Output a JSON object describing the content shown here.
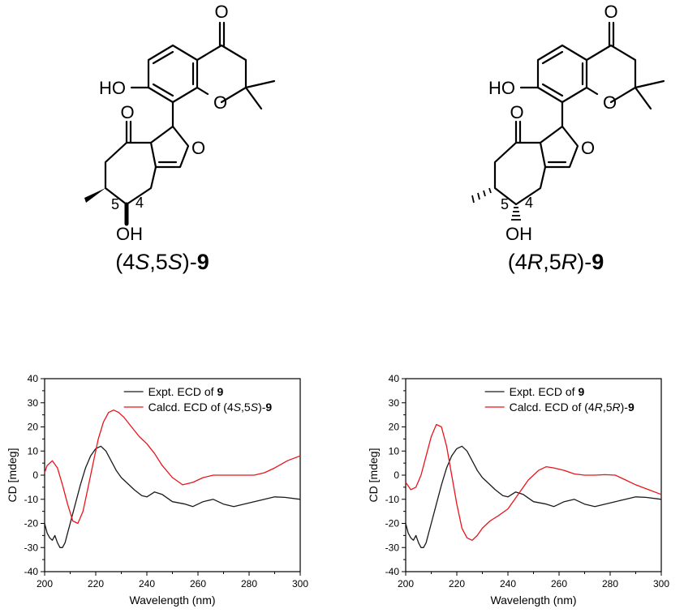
{
  "molecules": [
    {
      "label_prefix": "(4",
      "label_s1": "S",
      "label_mid": ",5",
      "label_s2": "S",
      "label_close": ")-",
      "label_bold": "9",
      "atoms": {
        "o_ketone_top": "O",
        "ho": "HO",
        "o_ring": "O",
        "o_ketone_left": "O",
        "o_furan": "O",
        "oh": "OH",
        "num5": "5",
        "num4": "4"
      }
    },
    {
      "label_prefix": "(4",
      "label_s1": "R",
      "label_mid": ",5",
      "label_s2": "R",
      "label_close": ")-",
      "label_bold": "9",
      "atoms": {
        "o_ketone_top": "O",
        "ho": "HO",
        "o_ring": "O",
        "o_ketone_left": "O",
        "o_furan": "O",
        "oh": "OH",
        "num5": "5",
        "num4": "4"
      }
    }
  ],
  "chart_data": [
    {
      "type": "line",
      "xlabel": "Wavelength (nm)",
      "ylabel": "CD [mdeg]",
      "xlim": [
        200,
        300
      ],
      "ylim": [
        -40,
        40
      ],
      "xticks": [
        "200",
        "220",
        "240",
        "260",
        "280",
        "300"
      ],
      "yticks": [
        "40",
        "30",
        "20",
        "10",
        "0",
        "-10",
        "-20",
        "-30",
        "-40"
      ],
      "legend_position": "top-right",
      "series": [
        {
          "legend_prefix": "Expt. ECD of ",
          "legend_s1": "",
          "legend_mid": "",
          "legend_s2": "",
          "legend_close": "",
          "legend_bold": "9",
          "color": "#1a1a1a",
          "x": [
            200,
            201,
            202,
            203,
            204,
            205,
            206,
            207,
            208,
            209,
            210,
            212,
            214,
            216,
            218,
            220,
            222,
            224,
            226,
            228,
            230,
            232,
            235,
            238,
            240,
            243,
            246,
            250,
            255,
            258,
            262,
            266,
            270,
            274,
            278,
            282,
            286,
            290,
            294,
            300
          ],
          "y": [
            -20,
            -24,
            -26,
            -27,
            -25,
            -28,
            -30,
            -30,
            -28,
            -24,
            -20,
            -12,
            -4,
            3,
            8,
            11,
            12,
            10,
            6,
            2,
            -1,
            -3,
            -6,
            -8.5,
            -9,
            -7,
            -8,
            -11,
            -12,
            -13,
            -11,
            -10,
            -12,
            -13,
            -12,
            -11,
            -10,
            -9,
            -9.2,
            -10
          ]
        },
        {
          "legend_prefix": "Calcd. ECD of (4",
          "legend_s1": "S",
          "legend_mid": ",5",
          "legend_s2": "S",
          "legend_close": ")-",
          "legend_bold": "9",
          "color": "#e8141c",
          "x": [
            200,
            201,
            203,
            205,
            207,
            209,
            211,
            213,
            215,
            217,
            219,
            221,
            223,
            225,
            227,
            229,
            231,
            234,
            237,
            240,
            243,
            246,
            250,
            254,
            258,
            262,
            266,
            270,
            274,
            278,
            282,
            286,
            290,
            295,
            300
          ],
          "y": [
            1,
            4,
            6,
            3,
            -4,
            -12,
            -19,
            -20,
            -15,
            -5,
            5,
            15,
            22,
            26,
            27,
            26,
            24,
            20,
            16,
            13,
            9,
            4,
            -1,
            -4,
            -3,
            -1,
            0,
            0,
            0,
            0,
            0,
            1,
            3,
            6,
            8
          ]
        }
      ]
    },
    {
      "type": "line",
      "xlabel": "Wavelength (nm)",
      "ylabel": "CD [mdeg]",
      "xlim": [
        200,
        300
      ],
      "ylim": [
        -40,
        40
      ],
      "xticks": [
        "200",
        "220",
        "240",
        "260",
        "280",
        "300"
      ],
      "yticks": [
        "40",
        "30",
        "20",
        "10",
        "0",
        "-10",
        "-20",
        "-30",
        "-40"
      ],
      "legend_position": "top-right",
      "series": [
        {
          "legend_prefix": "Expt. ECD of ",
          "legend_s1": "",
          "legend_mid": "",
          "legend_s2": "",
          "legend_close": "",
          "legend_bold": "9",
          "color": "#1a1a1a",
          "x": [
            200,
            201,
            202,
            203,
            204,
            205,
            206,
            207,
            208,
            209,
            210,
            212,
            214,
            216,
            218,
            220,
            222,
            224,
            226,
            228,
            230,
            232,
            235,
            238,
            240,
            243,
            246,
            250,
            255,
            258,
            262,
            266,
            270,
            274,
            278,
            282,
            286,
            290,
            294,
            300
          ],
          "y": [
            -20,
            -24,
            -26,
            -27,
            -25,
            -28,
            -30,
            -30,
            -28,
            -24,
            -20,
            -12,
            -4,
            3,
            8,
            11,
            12,
            10,
            6,
            2,
            -1,
            -3,
            -6,
            -8.5,
            -9,
            -7,
            -8,
            -11,
            -12,
            -13,
            -11,
            -10,
            -12,
            -13,
            -12,
            -11,
            -10,
            -9,
            -9.2,
            -10
          ]
        },
        {
          "legend_prefix": "Calcd. ECD of (4",
          "legend_s1": "R",
          "legend_mid": ",5",
          "legend_s2": "R",
          "legend_close": ")-",
          "legend_bold": "9",
          "color": "#e8141c",
          "x": [
            200,
            202,
            204,
            206,
            208,
            210,
            212,
            214,
            216,
            218,
            220,
            222,
            224,
            226,
            228,
            230,
            233,
            236,
            240,
            244,
            248,
            252,
            255,
            258,
            262,
            266,
            270,
            274,
            278,
            282,
            286,
            290,
            295,
            300
          ],
          "y": [
            -3,
            -6,
            -5,
            0,
            8,
            16,
            21,
            20,
            12,
            0,
            -12,
            -22,
            -26,
            -27,
            -25,
            -22,
            -19,
            -17,
            -14,
            -8,
            -2,
            2,
            3.5,
            3,
            2,
            0.5,
            0,
            0,
            0.2,
            0,
            -2,
            -4,
            -6,
            -8
          ]
        }
      ]
    }
  ]
}
